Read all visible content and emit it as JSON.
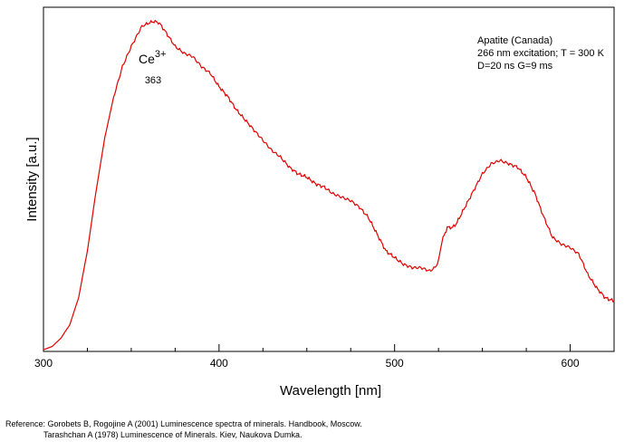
{
  "chart_data": {
    "type": "line",
    "title": "",
    "xlabel": "Wavelength [nm]",
    "ylabel": "Intensity [a.u.]",
    "xlim": [
      300,
      625
    ],
    "ylim": [
      0,
      100
    ],
    "y_ticks_labeled": false,
    "grid": false,
    "xticks": [
      300,
      400,
      500,
      600
    ],
    "xtick_labels": [
      "300",
      "400",
      "500",
      "600"
    ],
    "line_color": "#e00000",
    "series": [
      {
        "x": [
          300,
          305,
          310,
          315,
          320,
          325,
          330,
          335,
          340,
          345,
          350,
          353,
          356,
          358,
          360,
          363,
          366,
          370,
          375,
          380,
          385,
          390,
          395,
          400,
          405,
          410,
          415,
          420,
          425,
          430,
          435,
          440,
          445,
          450,
          455,
          460,
          465,
          470,
          475,
          480,
          485,
          490,
          495,
          500,
          505,
          510,
          515,
          520,
          523,
          525,
          527,
          530,
          533,
          535,
          540,
          545,
          550,
          555,
          560,
          565,
          570,
          575,
          580,
          585,
          590,
          595,
          600,
          605,
          610,
          615,
          620,
          625
        ],
        "y": [
          0.5,
          1.5,
          4,
          8,
          16,
          30,
          48,
          64,
          76,
          85,
          91,
          94,
          97,
          97.5,
          98,
          98.5,
          98,
          95,
          91,
          89,
          88,
          85,
          83,
          79,
          76,
          72,
          69,
          66,
          63,
          60,
          58,
          55,
          53,
          52,
          50,
          49,
          47,
          46,
          45,
          43,
          40,
          35,
          30,
          28,
          26,
          25,
          25,
          24,
          25,
          27,
          33,
          37,
          37,
          38,
          43,
          48,
          53,
          56,
          57,
          56,
          55,
          52,
          47,
          40,
          34,
          32,
          31,
          29,
          23,
          19,
          16,
          15
        ]
      }
    ],
    "annotations": {
      "peak_label": "363",
      "ion_base": "Ce",
      "ion_charge": "3+",
      "sample": "Apatite (Canada)",
      "excitation": "266 nm excitation; T = 300 K",
      "timing": "D=20 ns G=9 ms"
    }
  },
  "reference": {
    "line1": "Reference: Gorobets B, Rogojine A (2001) Luminescence spectra of minerals. Handbook, Moscow.",
    "line2": "Tarashchan A (1978) Luminescence of Minerals. Kiev, Naukova Dumka."
  }
}
